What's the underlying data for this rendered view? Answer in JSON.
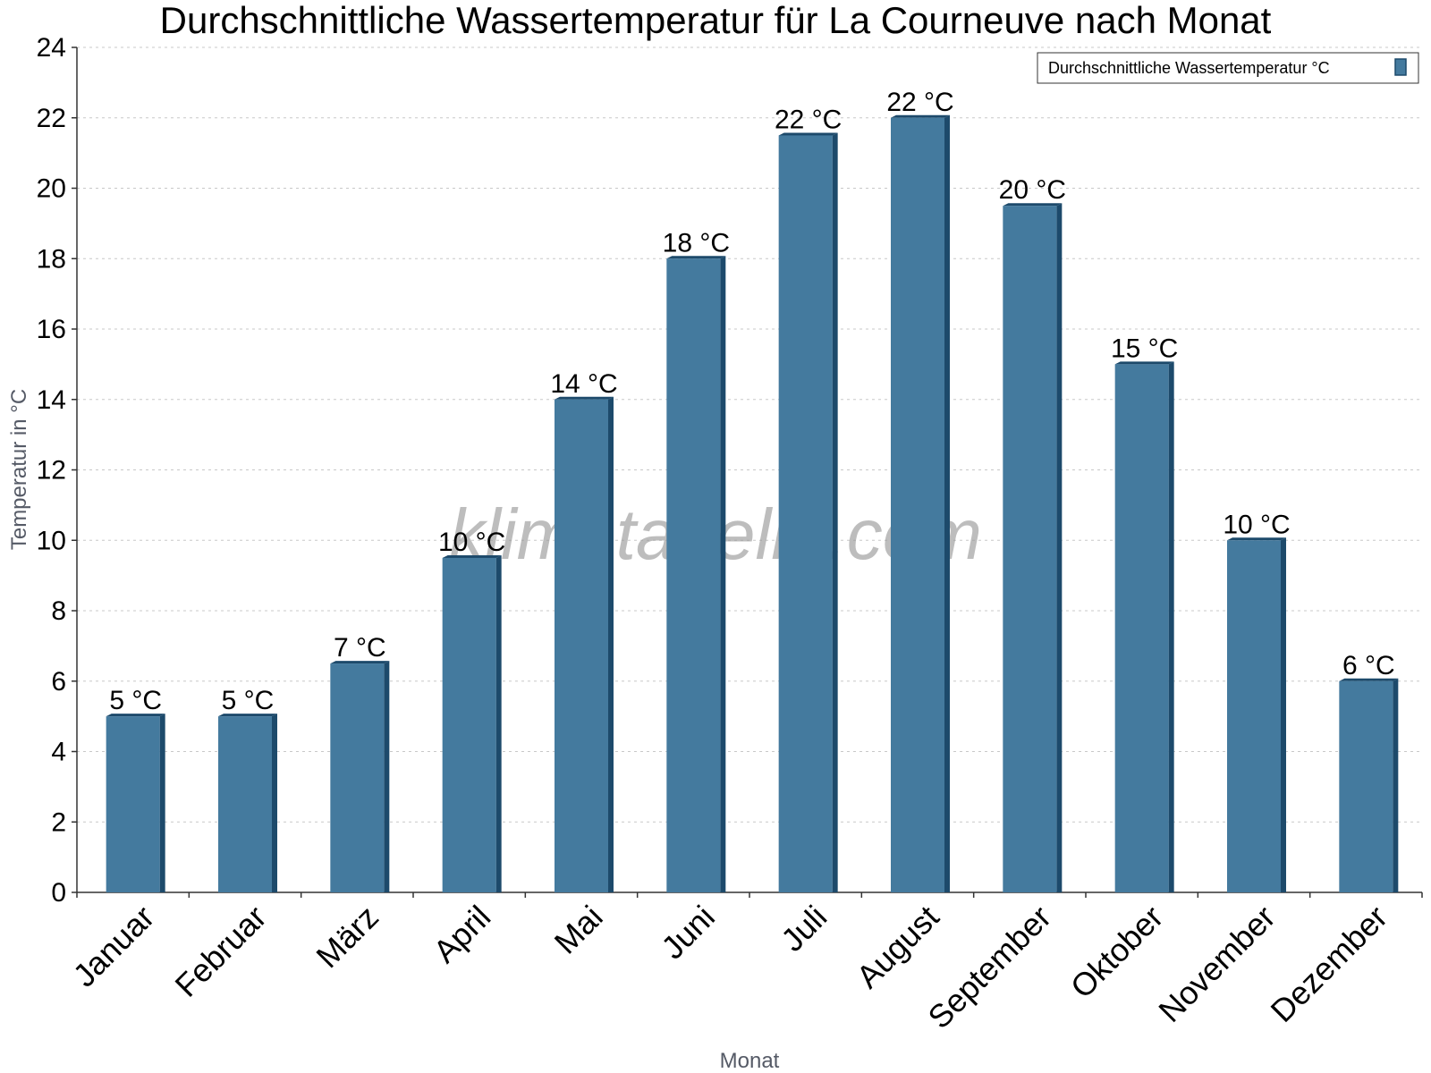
{
  "chart_data": {
    "type": "bar",
    "title": "Durchschnittliche Wassertemperatur für La Courneuve nach Monat",
    "xlabel": "Monat",
    "ylabel": "Temperatur in °C",
    "ylim": [
      0,
      24
    ],
    "y_ticks": [
      0,
      2,
      4,
      6,
      8,
      10,
      12,
      14,
      16,
      18,
      20,
      22,
      24
    ],
    "grid": true,
    "legend_position": "top-right",
    "categories": [
      "Januar",
      "Februar",
      "März",
      "April",
      "Mai",
      "Juni",
      "Juli",
      "August",
      "September",
      "Oktober",
      "November",
      "Dezember"
    ],
    "series": [
      {
        "name": "Durchschnittliche Wassertemperatur °C",
        "color": "#447a9e",
        "values": [
          5.0,
          5.0,
          6.5,
          9.5,
          14.0,
          18.0,
          21.5,
          22.0,
          19.5,
          15.0,
          10.0,
          6.0
        ],
        "labels": [
          "5 °C",
          "5 °C",
          "7 °C",
          "10 °C",
          "14 °C",
          "18 °C",
          "22 °C",
          "22 °C",
          "20 °C",
          "15 °C",
          "10 °C",
          "6 °C"
        ]
      }
    ]
  },
  "watermark": "klimatabelle.com",
  "colors": {
    "bar": "#447a9e",
    "bar_edge": "#1d4a6b",
    "grid": "#c8c8c8"
  }
}
